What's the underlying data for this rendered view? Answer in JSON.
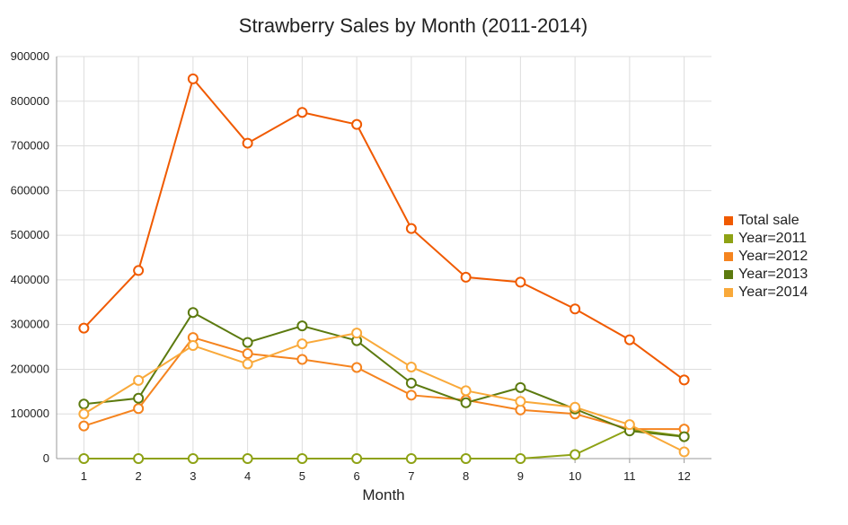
{
  "chart_data": {
    "type": "line",
    "title": "Strawberry Sales by Month (2011-2014)",
    "xlabel": "Month",
    "ylabel": "",
    "x": [
      "1",
      "2",
      "3",
      "4",
      "5",
      "6",
      "7",
      "8",
      "9",
      "10",
      "11",
      "12"
    ],
    "ylim": [
      0,
      900000
    ],
    "yticks": [
      "0",
      "100000",
      "200000",
      "300000",
      "400000",
      "500000",
      "600000",
      "700000",
      "800000",
      "900000"
    ],
    "grid": true,
    "legend_position": "right",
    "series": [
      {
        "name": "Total sale",
        "color": "#f05a00",
        "values": [
          292000,
          421000,
          850000,
          706000,
          775000,
          748000,
          515000,
          406000,
          395000,
          335000,
          266000,
          176000
        ]
      },
      {
        "name": "Year=2011",
        "color": "#8ea215",
        "values": [
          0,
          0,
          0,
          0,
          0,
          0,
          0,
          0,
          0,
          9000,
          66000,
          50000
        ]
      },
      {
        "name": "Year=2012",
        "color": "#f5841f",
        "values": [
          73000,
          112000,
          271000,
          235000,
          222000,
          204000,
          142000,
          131000,
          109000,
          100000,
          66000,
          66000
        ]
      },
      {
        "name": "Year=2013",
        "color": "#5c7a0f",
        "values": [
          122000,
          135000,
          327000,
          260000,
          297000,
          264000,
          169000,
          125000,
          159000,
          111000,
          62000,
          49000
        ]
      },
      {
        "name": "Year=2014",
        "color": "#f9a93a",
        "values": [
          100000,
          175000,
          253000,
          212000,
          257000,
          281000,
          205000,
          152000,
          128000,
          115000,
          76000,
          15000
        ]
      }
    ]
  }
}
